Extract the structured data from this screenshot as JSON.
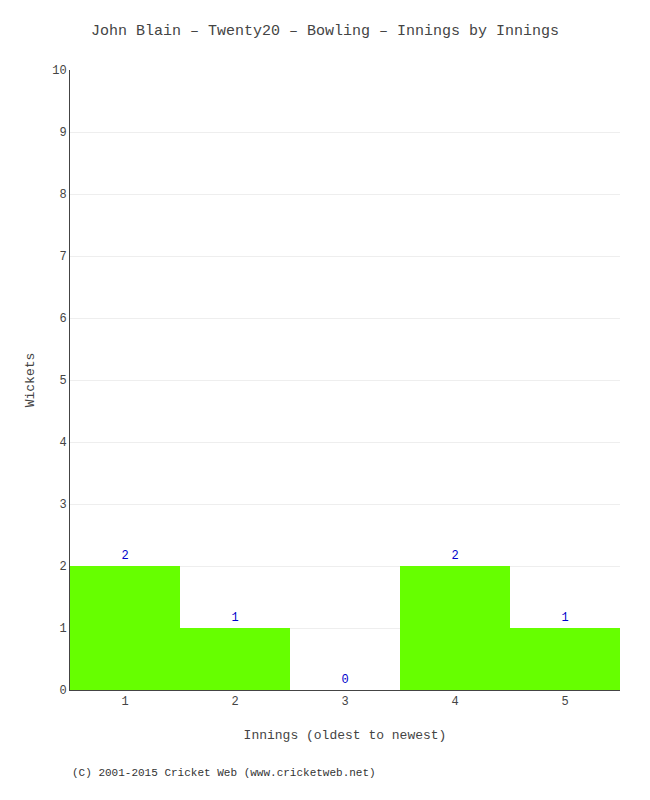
{
  "chart_data": {
    "type": "bar",
    "title": "John Blain – Twenty20 – Bowling – Innings by Innings",
    "xlabel": "Innings (oldest to newest)",
    "ylabel": "Wickets",
    "x": [
      1,
      2,
      3,
      4,
      5
    ],
    "values": [
      2,
      1,
      0,
      2,
      1
    ],
    "color": "#66ff00",
    "xlim": [
      0.5,
      5.5
    ],
    "xticks": [
      1,
      2,
      3,
      4,
      5
    ],
    "ylim": [
      0,
      10
    ],
    "yticks": [
      0,
      1,
      2,
      3,
      4,
      5,
      6,
      7,
      8,
      9,
      10
    ],
    "grid": true,
    "data_labels": true,
    "footer": "(C) 2001-2015 Cricket Web (www.cricketweb.net)"
  }
}
